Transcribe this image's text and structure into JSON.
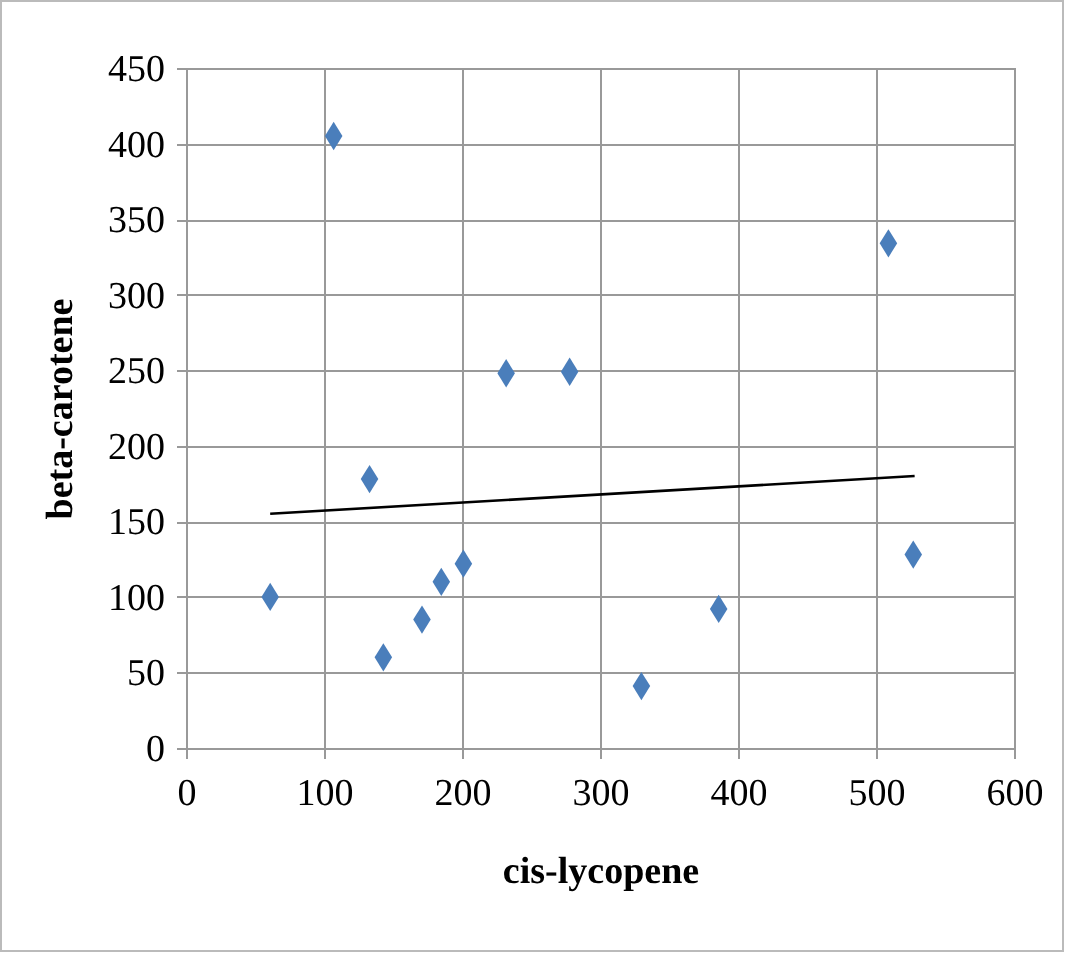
{
  "chart_data": {
    "type": "scatter",
    "xlabel": "cis-lycopene",
    "ylabel": "beta-carotene",
    "xlim": [
      0,
      600
    ],
    "ylim": [
      0,
      450
    ],
    "xticks": [
      0,
      100,
      200,
      300,
      400,
      500,
      600
    ],
    "yticks": [
      0,
      50,
      100,
      150,
      200,
      250,
      300,
      350,
      400,
      450
    ],
    "grid": true,
    "series": [
      {
        "type": "scatter",
        "marker": "diamond",
        "color": "#4a7ebb",
        "x": [
          61,
          107,
          133,
          143,
          171,
          185,
          201,
          232,
          278,
          330,
          386,
          509,
          527
        ],
        "values": [
          100,
          405,
          178,
          60,
          85,
          110,
          122,
          248,
          249,
          41,
          92,
          334,
          128
        ]
      },
      {
        "type": "line",
        "color": "#000000",
        "x": [
          61,
          528
        ],
        "values": [
          155,
          180
        ]
      }
    ]
  }
}
